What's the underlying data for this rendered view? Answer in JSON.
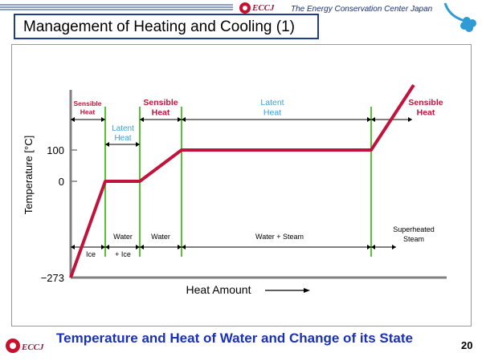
{
  "header": {
    "title": "Management of Heating and Cooling (1)",
    "logo_text": "ECCJ",
    "org_name": "The Energy Conservation Center Japan"
  },
  "chart_data": {
    "type": "line",
    "title": "",
    "xlabel": "Heat Amount",
    "ylabel": "Temperature [°C]",
    "y_ticks": [
      "100",
      "0",
      "−273"
    ],
    "series": [
      {
        "x": [
          0,
          1,
          2,
          3,
          4,
          5
        ],
        "y": [
          -273,
          0,
          0,
          100,
          100,
          230
        ]
      }
    ],
    "top_labels": [
      {
        "text": [
          "Sensible",
          "Heat"
        ],
        "color": "#c0143c"
      },
      {
        "text": [
          "Latent",
          "Heat"
        ],
        "color": "#3aa0d8"
      },
      {
        "text": [
          "Sensible",
          "Heat"
        ],
        "color": "#c0143c"
      },
      {
        "text": [
          "Latent",
          "Heat"
        ],
        "color": "#3aa0d8"
      },
      {
        "text": [
          "Sensible",
          "Heat"
        ],
        "color": "#c0143c"
      }
    ],
    "state_labels": [
      [
        "Ice"
      ],
      [
        "Water",
        "+ Ice"
      ],
      [
        "Water"
      ],
      [
        "Water + Steam"
      ],
      [
        "Superheated",
        "Steam"
      ]
    ],
    "colors": {
      "curve": "#c0143c",
      "phase_line": "#59c232",
      "axis": "#808080"
    }
  },
  "footer": {
    "logo_text": "ECCJ",
    "title": "Temperature and Heat of Water and Change of its State",
    "page_number": "20"
  }
}
